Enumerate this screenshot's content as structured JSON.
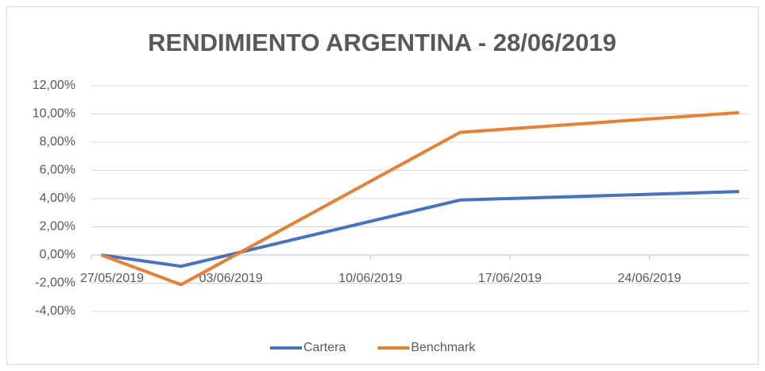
{
  "chart_data": {
    "type": "line",
    "title": "RENDIMIENTO ARGENTINA - 28/06/2019",
    "x": [
      "27/05/2019",
      "31/05/2019",
      "14/06/2019",
      "28/06/2019"
    ],
    "series": [
      {
        "name": "Cartera",
        "color": "#4472c4",
        "values": [
          0,
          -0.8,
          3.9,
          4.5
        ]
      },
      {
        "name": "Benchmark",
        "color": "#ed7d31",
        "values": [
          0,
          -2.1,
          8.7,
          10.1
        ]
      }
    ],
    "xlim": [
      "27/05/2019",
      "29/06/2019"
    ],
    "xticks": [
      "27/05/2019",
      "03/06/2019",
      "10/06/2019",
      "17/06/2019",
      "24/06/2019"
    ],
    "ylim": [
      -4,
      12
    ],
    "yticks": [
      {
        "value": -4,
        "label": "-4,00%"
      },
      {
        "value": -2,
        "label": "-2,00%"
      },
      {
        "value": 0,
        "label": "0,00%"
      },
      {
        "value": 2,
        "label": "2,00%"
      },
      {
        "value": 4,
        "label": "4,00%"
      },
      {
        "value": 6,
        "label": "6,00%"
      },
      {
        "value": 8,
        "label": "8,00%"
      },
      {
        "value": 10,
        "label": "10,00%"
      },
      {
        "value": 12,
        "label": "12,00%"
      }
    ],
    "grid": true,
    "legend": "bottom"
  }
}
